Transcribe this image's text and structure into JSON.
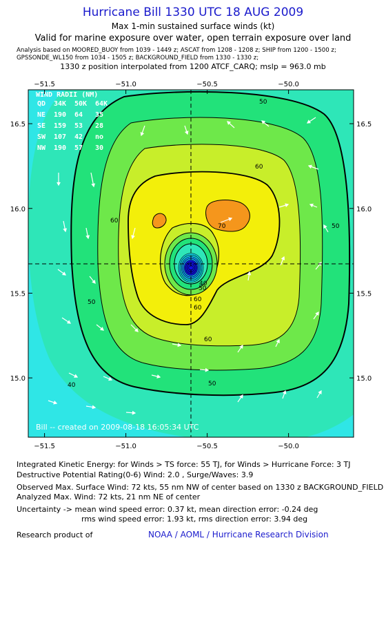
{
  "header": {
    "title": "Hurricane Bill 1330 UTC 18 AUG 2009",
    "subtitle1": "Max 1-min sustained surface winds (kt)",
    "subtitle2": "Valid for marine exposure over water, open terrain exposure over land",
    "analysis_line1": "Analysis based on  MOORED_BUOY from 1039 - 1449 z;  ASCAT from 1208 - 1208 z;  SHIP from 1200 - 1500 z;",
    "analysis_line2": "GPSSONDE_WL150 from 1034 - 1505 z;  BACKGROUND_FIELD from 1330 - 1330 z;",
    "position_line": "1330 z position interpolated from 1200 ATCF_CARQ; mslp = 963.0 mb"
  },
  "wind_radii": {
    "title": "WIND RADII (NM)",
    "columns": [
      "QD",
      "34K",
      "50K",
      "64K"
    ],
    "rows": [
      [
        "NE",
        "190",
        "64",
        "35"
      ],
      [
        "SE",
        "159",
        "53",
        "28"
      ],
      [
        "SW",
        "107",
        "42",
        "no"
      ],
      [
        "NW",
        "190",
        "57",
        "30"
      ]
    ]
  },
  "created_label": "Bill -- created on 2009-08-18 16:05:34 UTC",
  "chart_data": {
    "type": "heatmap",
    "title": "Max 1-min sustained surface winds (kt)",
    "center": {
      "lon": -50.6,
      "lat": 15.65
    },
    "xlim": [
      -51.6,
      -49.6
    ],
    "ylim": [
      14.65,
      16.7
    ],
    "x_ticks": [
      -51.5,
      -51.0,
      -50.5,
      -50.0
    ],
    "x_tick_labels": [
      "−51.5",
      "−51.0",
      "−50.5",
      "−50.0"
    ],
    "y_ticks": [
      15.0,
      15.5,
      16.0,
      16.5
    ],
    "y_tick_labels": [
      "15.0",
      "15.5",
      "16.0",
      "16.5"
    ],
    "contour_labels": [
      "50",
      "60",
      "70",
      "60",
      "60",
      "50",
      "50",
      "50",
      "40",
      "60",
      "50",
      "60",
      "40"
    ],
    "max_wind_kt": 72,
    "colors": {
      "cyan": "#2fe6e6",
      "teal": "#2ee6b8",
      "green1": "#22e27a",
      "green2": "#6ee84a",
      "yellowgreen": "#c8ee2a",
      "yellow": "#f3ef0a",
      "orange": "#f5961c",
      "core": "#1010e0"
    }
  },
  "footer": {
    "ike": "Integrated Kinetic Energy:  for Winds > TS force: 55 TJ,  for Winds > Hurricane Force: 3 TJ",
    "dpr": "Destructive Potential Rating(0-6)   Wind: 2.0 , Surge/Waves: 3.9",
    "observed": "Observed Max. Surface Wind: 72 kts, 55 nm NW of center based on 1330 z BACKGROUND_FIELD",
    "analyzed": "Analyzed Max. Wind: 72 kts, 21 nm NE of center",
    "uncertainty1": "Uncertainty -> mean wind speed error: 0.37 kt,   mean direction error:  -0.24 deg",
    "uncertainty2": "rms wind speed error: 1.93 kt,   rms direction error: 3.94 deg",
    "research": "Research product of",
    "noaa": "NOAA / AOML / Hurricane Research Division"
  }
}
